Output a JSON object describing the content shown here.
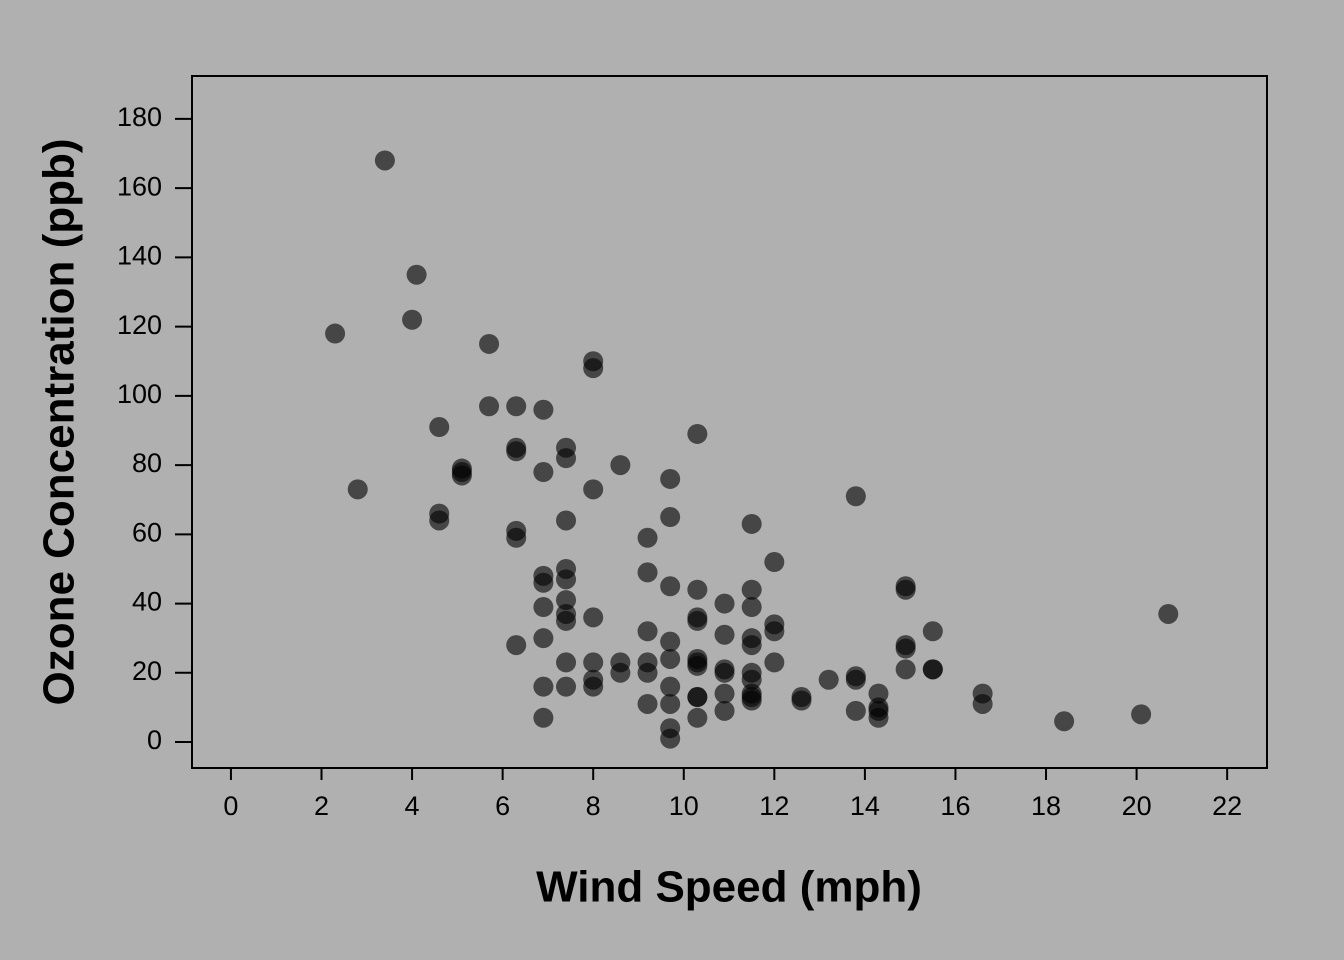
{
  "chart_data": {
    "type": "scatter",
    "xlabel": "Wind Speed (mph)",
    "ylabel": "Ozone Concentration (ppb)",
    "x": [
      7.4,
      8.0,
      12.6,
      11.5,
      14.9,
      8.6,
      13.8,
      20.1,
      6.9,
      9.7,
      9.2,
      10.9,
      13.2,
      11.5,
      12.0,
      18.4,
      11.5,
      9.7,
      9.7,
      16.6,
      9.7,
      12.0,
      12.0,
      14.9,
      5.7,
      7.4,
      9.7,
      13.8,
      11.5,
      8.0,
      14.9,
      20.7,
      9.2,
      11.5,
      10.3,
      4.1,
      9.2,
      9.2,
      4.6,
      10.9,
      5.1,
      6.3,
      5.7,
      7.4,
      14.3,
      14.9,
      14.3,
      6.9,
      10.3,
      6.3,
      5.1,
      11.5,
      6.9,
      8.6,
      8.0,
      8.6,
      12.0,
      7.4,
      7.4,
      7.4,
      9.2,
      6.9,
      13.8,
      7.4,
      6.9,
      7.4,
      4.6,
      4.0,
      10.3,
      8.0,
      11.5,
      11.5,
      9.7,
      10.3,
      6.3,
      7.4,
      10.9,
      10.3,
      15.5,
      14.3,
      9.7,
      3.4,
      8.0,
      9.7,
      2.3,
      6.3,
      6.3,
      6.9,
      5.1,
      2.8,
      4.6,
      7.4,
      15.5,
      10.9,
      10.3,
      10.9,
      9.7,
      14.9,
      15.5,
      6.3,
      10.9,
      11.5,
      6.9,
      13.8,
      10.3,
      10.3,
      8.0,
      12.6,
      9.2,
      10.3,
      10.3,
      16.6,
      6.9,
      14.3,
      8.0,
      11.5
    ],
    "values": [
      41,
      36,
      12,
      18,
      28,
      23,
      19,
      8,
      7,
      16,
      11,
      14,
      18,
      14,
      34,
      6,
      30,
      11,
      1,
      11,
      4,
      32,
      23,
      45,
      115,
      37,
      29,
      71,
      39,
      23,
      21,
      37,
      20,
      12,
      13,
      135,
      49,
      32,
      64,
      40,
      77,
      97,
      97,
      85,
      10,
      27,
      7,
      48,
      35,
      61,
      79,
      63,
      16,
      80,
      108,
      20,
      52,
      82,
      50,
      64,
      59,
      39,
      9,
      16,
      78,
      35,
      66,
      122,
      89,
      110,
      44,
      28,
      65,
      22,
      59,
      23,
      31,
      44,
      21,
      9,
      45,
      168,
      73,
      76,
      118,
      84,
      85,
      96,
      78,
      73,
      91,
      47,
      32,
      20,
      23,
      21,
      24,
      44,
      21,
      28,
      9,
      13,
      46,
      18,
      13,
      24,
      16,
      13,
      23,
      36,
      7,
      14,
      30,
      14,
      18,
      20
    ],
    "color": "#000000",
    "xlim": [
      -0.86,
      22.88
    ],
    "xticks": [
      0,
      2,
      4,
      6,
      8,
      10,
      12,
      14,
      16,
      18,
      20,
      22
    ],
    "ylim": [
      -7.5,
      192.4
    ],
    "yticks": [
      0,
      20,
      40,
      60,
      80,
      100,
      120,
      140,
      160,
      180
    ]
  }
}
